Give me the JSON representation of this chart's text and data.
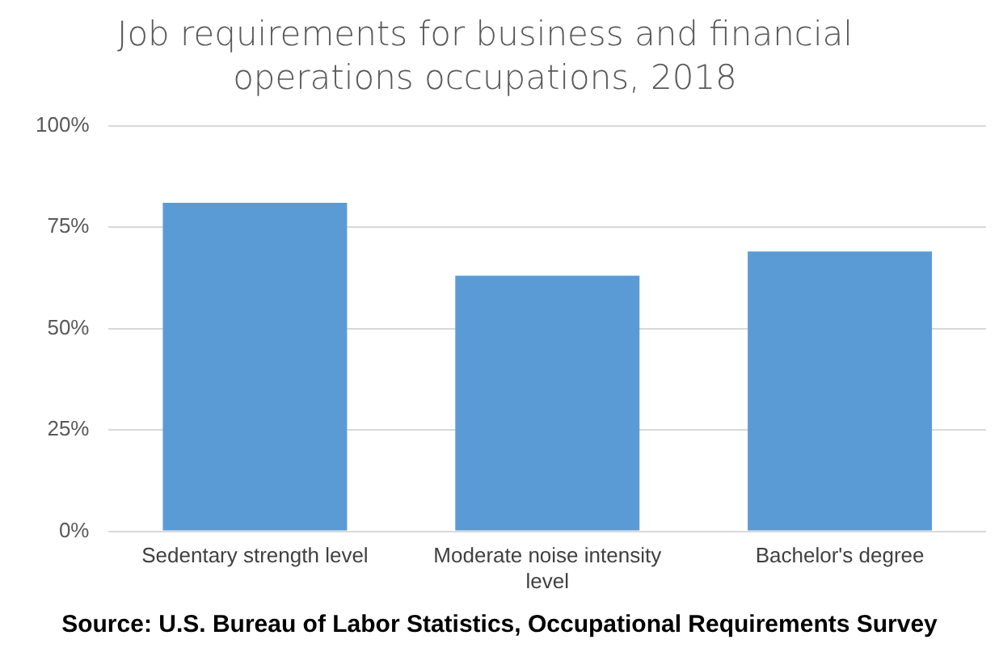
{
  "chart_data": {
    "type": "bar",
    "title": "Job requirements for business and financial operations occupations, 2018",
    "categories": [
      "Sedentary strength level",
      "Moderate noise intensity level",
      "Bachelor's degree"
    ],
    "values": [
      81,
      63,
      69
    ],
    "color": "#5b9bd5",
    "ylim": [
      0,
      100
    ],
    "yticks": [
      {
        "value": 0,
        "label": "0%"
      },
      {
        "value": 25,
        "label": "25%"
      },
      {
        "value": 50,
        "label": "50%"
      },
      {
        "value": 75,
        "label": "75%"
      },
      {
        "value": 100,
        "label": "100%"
      }
    ],
    "grid": "y",
    "legend": false,
    "annotations": [
      "Source: U.S. Bureau of Labor Statistics, Occupational Requirements Survey"
    ]
  }
}
